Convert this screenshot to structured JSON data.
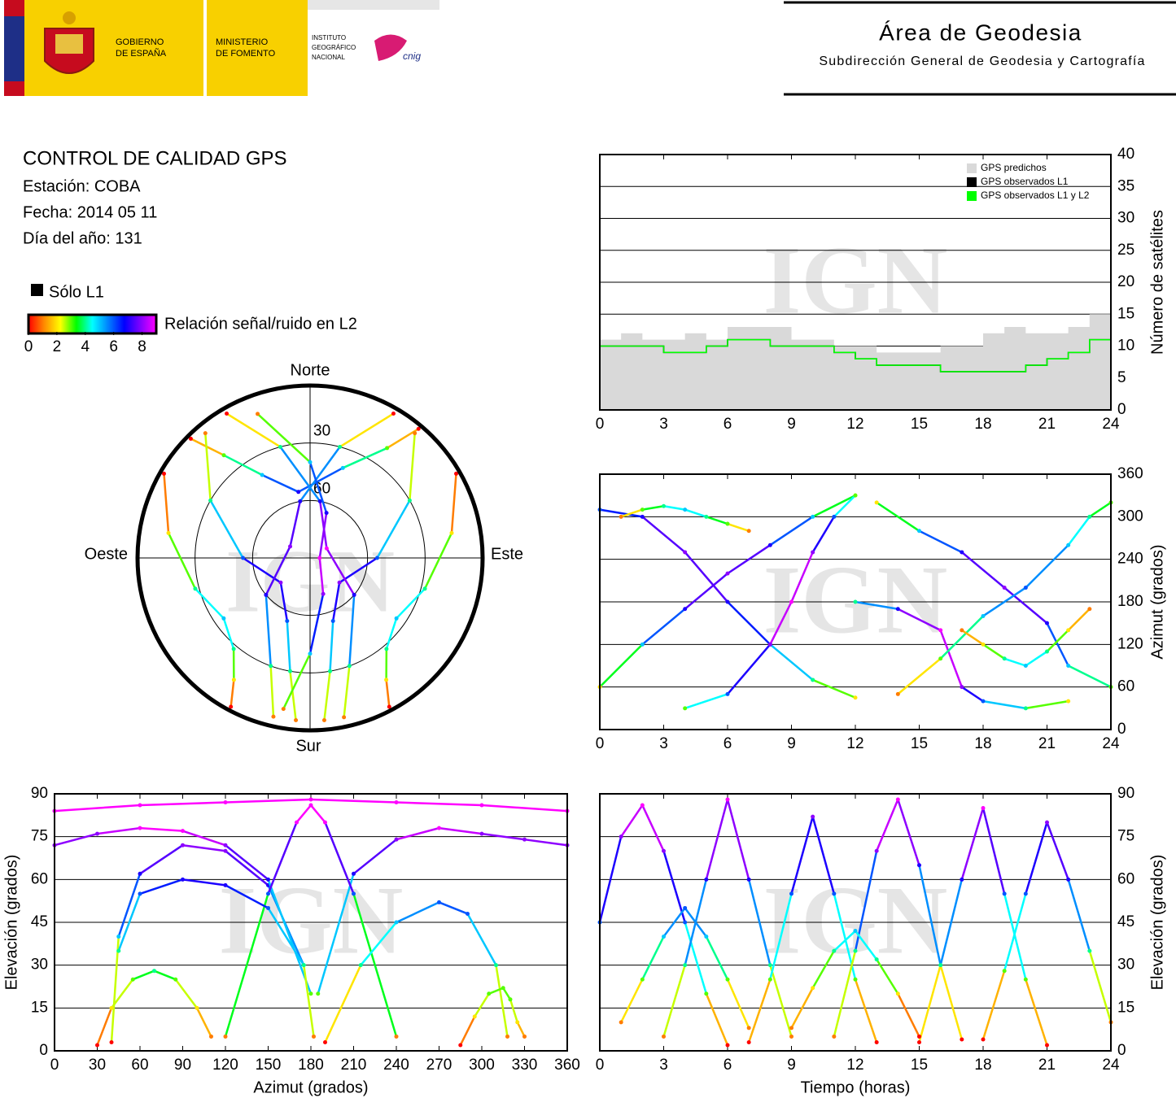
{
  "header": {
    "gobierno": [
      "GOBIERNO",
      "DE ESPAÑA"
    ],
    "ministerio": [
      "MINISTERIO",
      "DE FOMENTO"
    ],
    "instituto": [
      "INSTITUTO",
      "GEOGRÁFICO",
      "NACIONAL"
    ],
    "cnig": "cnig",
    "area": "Área de Geodesia",
    "subdireccion": "Subdirección General de Geodesia y Cartografía"
  },
  "info": {
    "title": "CONTROL DE CALIDAD GPS",
    "lines": [
      "Estación: COBA",
      "Fecha: 2014 05 11",
      "Día del año: 131"
    ]
  },
  "legend": {
    "solo_l1": "Sólo L1",
    "solo_l1_color": "#000000",
    "snr_label": "Relación señal/ruido en L2",
    "snr_ticks": [
      0,
      2,
      4,
      6,
      8
    ],
    "snr_range": [
      0,
      9
    ],
    "colorscale": [
      "#ff0000",
      "#ff8c00",
      "#ffff00",
      "#00ff00",
      "#00ffff",
      "#0080ff",
      "#0000ff",
      "#8000ff",
      "#ff00ff"
    ]
  },
  "watermark": "IGN",
  "chart_data": [
    {
      "type": "step",
      "ylabel": "Número de satélites",
      "y_axis_side": "right",
      "grid": true,
      "legend_position": "upper right",
      "xlim": [
        0,
        24
      ],
      "xticks": [
        0,
        3,
        6,
        9,
        12,
        15,
        18,
        21,
        24
      ],
      "ylim": [
        0,
        40
      ],
      "yticks": [
        0,
        5,
        10,
        15,
        20,
        25,
        30,
        35,
        40
      ],
      "x": [
        0,
        1,
        2,
        3,
        4,
        5,
        6,
        7,
        8,
        9,
        10,
        11,
        12,
        13,
        14,
        15,
        16,
        17,
        18,
        19,
        20,
        21,
        22,
        23,
        24
      ],
      "series": [
        {
          "name": "GPS predichos",
          "color": "#d9d9d9",
          "fill": true,
          "values": [
            11,
            12,
            11,
            11,
            12,
            11,
            13,
            13,
            13,
            11,
            11,
            10,
            10,
            9,
            9,
            9,
            10,
            10,
            12,
            13,
            12,
            12,
            13,
            15,
            16
          ]
        },
        {
          "name": "GPS observados L1",
          "color": "#000000",
          "values": [
            10,
            10,
            10,
            9,
            9,
            10,
            11,
            11,
            10,
            10,
            10,
            9,
            8,
            7,
            7,
            7,
            6,
            6,
            6,
            6,
            7,
            8,
            9,
            11,
            10
          ]
        },
        {
          "name": "GPS observados L1 y L2",
          "color": "#00ff00",
          "values": [
            10,
            10,
            10,
            9,
            9,
            10,
            11,
            11,
            10,
            10,
            10,
            9,
            8,
            7,
            7,
            7,
            6,
            6,
            6,
            6,
            7,
            8,
            9,
            11,
            10
          ]
        }
      ]
    },
    {
      "type": "skyplot",
      "north": "Norte",
      "south": "Sur",
      "east": "Este",
      "west": "Oeste",
      "rings": [
        30,
        60
      ],
      "series": [
        {
          "azimuth": [
            315,
            320,
            330,
            350,
            20,
            35,
            40
          ],
          "elevation": [
            2,
            20,
            40,
            55,
            40,
            20,
            2
          ],
          "snr": [
            0,
            3,
            5,
            7,
            5,
            3,
            0
          ]
        },
        {
          "azimuth": [
            320,
            300,
            270,
            230,
            200,
            190,
            185
          ],
          "elevation": [
            5,
            30,
            55,
            70,
            55,
            30,
            5
          ],
          "snr": [
            1,
            4,
            6,
            8,
            6,
            4,
            1
          ]
        },
        {
          "azimuth": [
            40,
            60,
            90,
            130,
            160,
            170,
            175
          ],
          "elevation": [
            5,
            30,
            55,
            70,
            55,
            30,
            5
          ],
          "snr": [
            1,
            4,
            6,
            8,
            6,
            4,
            1
          ]
        },
        {
          "azimuth": [
            330,
            345,
            10,
            60,
            130,
            160,
            168
          ],
          "elevation": [
            3,
            30,
            60,
            80,
            60,
            30,
            5
          ],
          "snr": [
            0,
            4,
            7,
            9,
            7,
            4,
            1
          ]
        },
        {
          "azimuth": [
            30,
            15,
            350,
            300,
            230,
            200,
            193
          ],
          "elevation": [
            3,
            30,
            60,
            78,
            60,
            30,
            5
          ],
          "snr": [
            0,
            4,
            7,
            8,
            7,
            4,
            1
          ]
        },
        {
          "azimuth": [
            300,
            280,
            255,
            235,
            220,
            212,
            208
          ],
          "elevation": [
            2,
            15,
            28,
            35,
            28,
            15,
            2
          ],
          "snr": [
            0,
            2,
            4,
            5,
            4,
            2,
            0
          ]
        },
        {
          "azimuth": [
            60,
            80,
            105,
            125,
            140,
            148,
            152
          ],
          "elevation": [
            2,
            15,
            28,
            35,
            28,
            15,
            2
          ],
          "snr": [
            0,
            2,
            4,
            5,
            4,
            2,
            0
          ]
        },
        {
          "azimuth": [
            340,
            0,
            20,
            90,
            160,
            180,
            190
          ],
          "elevation": [
            10,
            40,
            65,
            85,
            70,
            40,
            10
          ],
          "snr": [
            1,
            5,
            7,
            9,
            8,
            5,
            1
          ]
        }
      ]
    },
    {
      "type": "track",
      "ylabel": "Azimut (grados)",
      "y_axis_side": "right",
      "grid": true,
      "xlim": [
        0,
        24
      ],
      "xticks": [
        0,
        3,
        6,
        9,
        12,
        15,
        18,
        21,
        24
      ],
      "ylim": [
        0,
        360
      ],
      "yticks": [
        0,
        60,
        120,
        180,
        240,
        300,
        360
      ],
      "series": [
        {
          "x": [
            0,
            2,
            4,
            6,
            8,
            10,
            12
          ],
          "values": [
            310,
            300,
            250,
            180,
            120,
            70,
            45
          ],
          "snr": [
            6,
            7,
            8,
            7,
            6,
            4,
            2
          ]
        },
        {
          "x": [
            0,
            2,
            4,
            6,
            8,
            10,
            12
          ],
          "values": [
            60,
            120,
            170,
            220,
            260,
            300,
            330
          ],
          "snr": [
            2,
            5,
            7,
            8,
            7,
            5,
            2
          ]
        },
        {
          "x": [
            4,
            6,
            8,
            9,
            10,
            11,
            12
          ],
          "values": [
            30,
            50,
            120,
            180,
            250,
            300,
            330
          ],
          "snr": [
            3,
            6,
            8,
            9,
            8,
            6,
            3
          ]
        },
        {
          "x": [
            12,
            14,
            16,
            17,
            18,
            20,
            22
          ],
          "values": [
            180,
            170,
            140,
            60,
            40,
            30,
            40
          ],
          "snr": [
            4,
            7,
            9,
            8,
            6,
            4,
            2
          ]
        },
        {
          "x": [
            13,
            15,
            17,
            19,
            21,
            22,
            24
          ],
          "values": [
            320,
            280,
            250,
            200,
            150,
            90,
            60
          ],
          "snr": [
            2,
            5,
            7,
            8,
            7,
            5,
            3
          ]
        },
        {
          "x": [
            14,
            16,
            18,
            20,
            22,
            23,
            24
          ],
          "values": [
            50,
            100,
            160,
            200,
            260,
            300,
            320
          ],
          "snr": [
            1,
            3,
            5,
            6,
            5,
            4,
            3
          ]
        },
        {
          "x": [
            1,
            2,
            3,
            4,
            5,
            6,
            7
          ],
          "values": [
            300,
            310,
            315,
            310,
            300,
            290,
            280
          ],
          "snr": [
            1,
            3,
            4,
            5,
            4,
            3,
            1
          ]
        },
        {
          "x": [
            17,
            18,
            19,
            20,
            21,
            22,
            23
          ],
          "values": [
            140,
            120,
            100,
            90,
            110,
            140,
            170
          ],
          "snr": [
            1,
            2,
            4,
            5,
            4,
            2,
            1
          ]
        }
      ]
    },
    {
      "type": "track",
      "xlabel": "Azimut (grados)",
      "ylabel": "Elevación (grados)",
      "y_axis_side": "left",
      "grid": true,
      "xlim": [
        0,
        360
      ],
      "xticks": [
        0,
        30,
        60,
        90,
        120,
        150,
        180,
        210,
        240,
        270,
        300,
        330,
        360
      ],
      "ylim": [
        0,
        90
      ],
      "yticks": [
        0,
        15,
        30,
        45,
        60,
        75,
        90
      ],
      "series": [
        {
          "x": [
            40,
            45,
            60,
            90,
            120,
            150,
            175
          ],
          "values": [
            3,
            40,
            62,
            72,
            70,
            58,
            30
          ],
          "snr": [
            0,
            5,
            7,
            8,
            8,
            7,
            4
          ]
        },
        {
          "x": [
            0,
            30,
            60,
            90,
            120,
            150,
            180
          ],
          "values": [
            72,
            76,
            78,
            77,
            72,
            60,
            20
          ],
          "snr": [
            8,
            8,
            9,
            9,
            8,
            7,
            3
          ]
        },
        {
          "x": [
            185,
            210,
            240,
            270,
            300,
            330,
            360
          ],
          "values": [
            20,
            62,
            74,
            78,
            76,
            74,
            72
          ],
          "snr": [
            3,
            7,
            8,
            9,
            8,
            8,
            8
          ]
        },
        {
          "x": [
            120,
            150,
            170,
            180,
            190,
            210,
            240
          ],
          "values": [
            5,
            55,
            80,
            86,
            80,
            55,
            5
          ],
          "snr": [
            1,
            6,
            9,
            9,
            9,
            6,
            1
          ]
        },
        {
          "x": [
            45,
            60,
            90,
            120,
            150,
            175,
            182
          ],
          "values": [
            35,
            55,
            60,
            58,
            50,
            30,
            5
          ],
          "snr": [
            4,
            6,
            7,
            7,
            6,
            4,
            1
          ]
        },
        {
          "x": [
            190,
            215,
            240,
            270,
            290,
            310,
            318
          ],
          "values": [
            3,
            30,
            45,
            52,
            48,
            30,
            5
          ],
          "snr": [
            0,
            4,
            5,
            6,
            6,
            4,
            1
          ]
        },
        {
          "x": [
            30,
            40,
            55,
            70,
            85,
            100,
            110
          ],
          "values": [
            2,
            15,
            25,
            28,
            25,
            15,
            5
          ],
          "snr": [
            0,
            2,
            3,
            4,
            3,
            2,
            1
          ]
        },
        {
          "x": [
            285,
            295,
            305,
            315,
            320,
            325,
            330
          ],
          "values": [
            2,
            12,
            20,
            22,
            18,
            10,
            5
          ],
          "snr": [
            0,
            2,
            3,
            3,
            3,
            2,
            1
          ]
        },
        {
          "x": [
            0,
            60,
            120,
            180,
            240,
            300,
            360
          ],
          "values": [
            84,
            86,
            87,
            88,
            87,
            86,
            84
          ],
          "snr": [
            9,
            9,
            9,
            9,
            9,
            9,
            9
          ]
        }
      ]
    },
    {
      "type": "track",
      "xlabel": "Tiempo (horas)",
      "ylabel": "Elevación (grados)",
      "y_axis_side": "right",
      "grid": true,
      "xlim": [
        0,
        24
      ],
      "xticks": [
        0,
        3,
        6,
        9,
        12,
        15,
        18,
        21,
        24
      ],
      "ylim": [
        0,
        90
      ],
      "yticks": [
        0,
        15,
        30,
        45,
        60,
        75,
        90
      ],
      "series": [
        {
          "x": [
            0,
            1,
            2,
            3,
            4,
            5,
            6
          ],
          "values": [
            45,
            75,
            86,
            70,
            45,
            20,
            2
          ],
          "snr": [
            6,
            8,
            9,
            8,
            6,
            3,
            0
          ]
        },
        {
          "x": [
            3,
            4,
            5,
            6,
            7,
            8,
            9
          ],
          "values": [
            5,
            30,
            60,
            88,
            60,
            30,
            5
          ],
          "snr": [
            1,
            4,
            7,
            9,
            7,
            4,
            1
          ]
        },
        {
          "x": [
            7,
            8,
            9,
            10,
            11,
            12,
            13
          ],
          "values": [
            3,
            25,
            55,
            82,
            55,
            25,
            3
          ],
          "snr": [
            0,
            3,
            6,
            8,
            6,
            3,
            0
          ]
        },
        {
          "x": [
            11,
            12,
            13,
            14,
            15,
            16,
            17
          ],
          "values": [
            5,
            35,
            70,
            88,
            65,
            30,
            4
          ],
          "snr": [
            1,
            4,
            8,
            9,
            7,
            4,
            0
          ]
        },
        {
          "x": [
            15,
            16,
            17,
            18,
            19,
            20,
            21
          ],
          "values": [
            3,
            30,
            60,
            85,
            55,
            25,
            2
          ],
          "snr": [
            0,
            4,
            7,
            9,
            6,
            3,
            0
          ]
        },
        {
          "x": [
            18,
            19,
            20,
            21,
            22,
            23,
            24
          ],
          "values": [
            4,
            28,
            55,
            80,
            60,
            35,
            10
          ],
          "snr": [
            0,
            3,
            6,
            8,
            7,
            4,
            1
          ]
        },
        {
          "x": [
            1,
            2,
            3,
            4,
            5,
            6,
            7
          ],
          "values": [
            10,
            25,
            40,
            50,
            40,
            25,
            8
          ],
          "snr": [
            1,
            3,
            5,
            6,
            5,
            3,
            1
          ]
        },
        {
          "x": [
            9,
            10,
            11,
            12,
            13,
            14,
            15
          ],
          "values": [
            8,
            22,
            35,
            42,
            32,
            20,
            5
          ],
          "snr": [
            1,
            2,
            4,
            5,
            4,
            2,
            0
          ]
        }
      ]
    }
  ]
}
